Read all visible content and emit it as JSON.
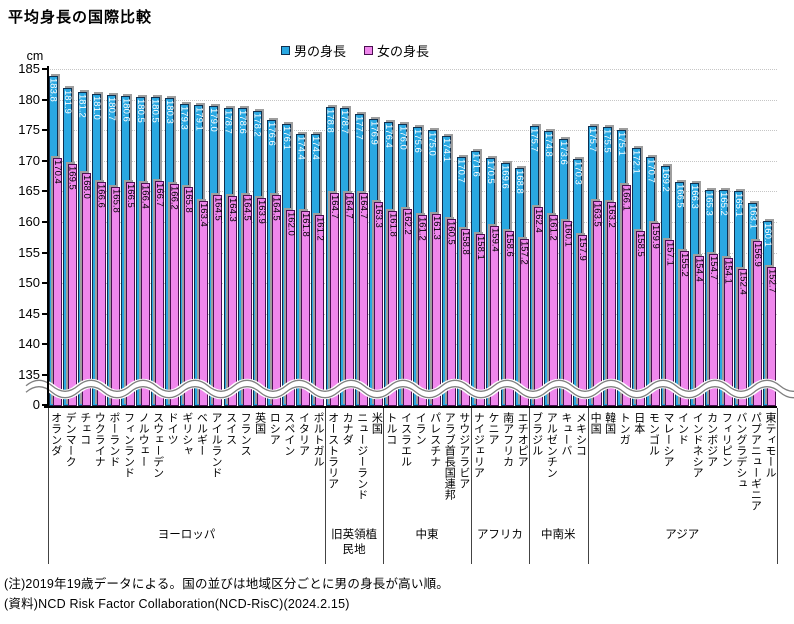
{
  "title": "平均身長の国際比較",
  "unit": "cm",
  "legend": {
    "male": "男の身長",
    "female": "女の身長"
  },
  "notes": [
    "(注)2019年19歳データによる。国の並びは地域区分ごとに男の身長が高い順。",
    "(資料)NCD Risk Factor Collaboration(NCD-RisC)(2024.2.15)"
  ],
  "colors": {
    "male_fill": "#29A8E2",
    "male_border": "#10304F",
    "female_fill": "#EF87EC",
    "female_border": "#4A1050",
    "shadow": "#9E9E9E",
    "grid": "#C6C6C6",
    "male_label_text": "#FFFFFF",
    "female_label_text": "#000000"
  },
  "chart_data": {
    "type": "bar",
    "title": "平均身長の国際比較",
    "ylabel": "cm",
    "series": [
      {
        "name": "男の身長"
      },
      {
        "name": "女の身長"
      }
    ],
    "y_ticks": [
      185,
      180,
      175,
      170,
      165,
      160,
      155,
      150,
      145,
      140,
      135,
      0
    ],
    "gridline_values": [
      185,
      180,
      175,
      170,
      165,
      160,
      155,
      150,
      145,
      140
    ],
    "ylim_display": [
      135,
      185
    ],
    "axis_break_above_zero": true,
    "legend_position": "top-center",
    "groups": [
      {
        "label": "ヨーロッパ",
        "countries": [
          {
            "name": "オランダ",
            "male": 183.8,
            "female": 170.4
          },
          {
            "name": "デンマーク",
            "male": 181.9,
            "female": 169.5
          },
          {
            "name": "チェコ",
            "male": 181.2,
            "female": 168.0
          },
          {
            "name": "ウクライナ",
            "male": 181.0,
            "female": 166.6
          },
          {
            "name": "ポーランド",
            "male": 180.7,
            "female": 165.8
          },
          {
            "name": "フィンランド",
            "male": 180.6,
            "female": 166.5
          },
          {
            "name": "ノルウェー",
            "male": 180.5,
            "female": 166.4
          },
          {
            "name": "スウェーデン",
            "male": 180.5,
            "female": 166.7
          },
          {
            "name": "ドイツ",
            "male": 180.3,
            "female": 166.2
          },
          {
            "name": "ギリシャ",
            "male": 179.3,
            "female": 165.8
          },
          {
            "name": "ベルギー",
            "male": 179.1,
            "female": 163.4
          },
          {
            "name": "アイルランド",
            "male": 179.0,
            "female": 164.5
          },
          {
            "name": "スイス",
            "male": 178.7,
            "female": 164.3
          },
          {
            "name": "フランス",
            "male": 178.6,
            "female": 164.5
          },
          {
            "name": "英国",
            "male": 178.2,
            "female": 163.9
          },
          {
            "name": "ロシア",
            "male": 176.6,
            "female": 164.5
          },
          {
            "name": "スペイン",
            "male": 176.1,
            "female": 162.0
          },
          {
            "name": "イタリア",
            "male": 174.4,
            "female": 161.8
          },
          {
            "name": "ポルトガル",
            "male": 174.4,
            "female": 161.2
          }
        ]
      },
      {
        "label": "旧英領植民地",
        "countries": [
          {
            "name": "オーストラリア",
            "male": 178.8,
            "female": 164.7
          },
          {
            "name": "カナダ",
            "male": 178.7,
            "female": 164.7
          },
          {
            "name": "ニュージーランド",
            "male": 177.7,
            "female": 164.7
          },
          {
            "name": "米国",
            "male": 176.9,
            "female": 163.3
          }
        ]
      },
      {
        "label": "中東",
        "countries": [
          {
            "name": "トルコ",
            "male": 176.4,
            "female": 161.8
          },
          {
            "name": "イスラエル",
            "male": 176.0,
            "female": 162.2
          },
          {
            "name": "イラン",
            "male": 175.6,
            "female": 161.2
          },
          {
            "name": "パレスチナ",
            "male": 175.0,
            "female": 161.3
          },
          {
            "name": "アラブ首長国連邦",
            "male": 174.1,
            "female": 160.5
          },
          {
            "name": "サウジアラビア",
            "male": 170.7,
            "female": 158.8
          }
        ]
      },
      {
        "label": "アフリカ",
        "countries": [
          {
            "name": "ナイジェリア",
            "male": 171.6,
            "female": 158.1
          },
          {
            "name": "ケニア",
            "male": 170.5,
            "female": 159.4
          },
          {
            "name": "南アフリカ",
            "male": 169.6,
            "female": 158.6
          },
          {
            "name": "エチオピア",
            "male": 168.8,
            "female": 157.2
          }
        ]
      },
      {
        "label": "中南米",
        "countries": [
          {
            "name": "ブラジル",
            "male": 175.7,
            "female": 162.4
          },
          {
            "name": "アルゼンチン",
            "male": 174.8,
            "female": 161.2
          },
          {
            "name": "キューバ",
            "male": 173.6,
            "female": 160.1
          },
          {
            "name": "メキシコ",
            "male": 170.3,
            "female": 157.9
          }
        ]
      },
      {
        "label": "アジア",
        "countries": [
          {
            "name": "中国",
            "male": 175.7,
            "female": 163.5
          },
          {
            "name": "韓国",
            "male": 175.5,
            "female": 163.2
          },
          {
            "name": "トンガ",
            "male": 175.1,
            "female": 166.1
          },
          {
            "name": "日本",
            "male": 172.1,
            "female": 158.5
          },
          {
            "name": "モンゴル",
            "male": 170.7,
            "female": 159.9
          },
          {
            "name": "マレーシア",
            "male": 169.2,
            "female": 157.1
          },
          {
            "name": "インド",
            "male": 166.5,
            "female": 155.2
          },
          {
            "name": "インドネシア",
            "male": 166.3,
            "female": 154.4
          },
          {
            "name": "カンボジア",
            "male": 165.3,
            "female": 154.7
          },
          {
            "name": "フィリピン",
            "male": 165.2,
            "female": 154.1
          },
          {
            "name": "バングラデシュ",
            "male": 165.1,
            "female": 152.4
          },
          {
            "name": "パプアニューギニア",
            "male": 163.1,
            "female": 156.9
          },
          {
            "name": "東ティモール",
            "male": 160.1,
            "female": 152.7
          }
        ]
      }
    ]
  }
}
